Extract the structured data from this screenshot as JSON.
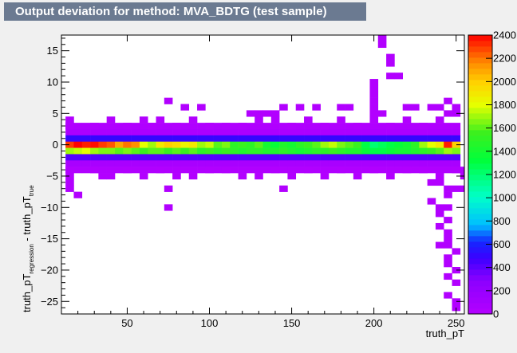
{
  "title": "Output deviation for method: MVA_BDTG (test sample)",
  "chart_data": {
    "type": "heatmap",
    "title": "Output deviation for method: MVA_BDTG (test sample)",
    "xlabel": "truth_pT",
    "ylabel_main": "truth_pT",
    "ylabel_sub1": "regression",
    "ylabel_mid": " - truth_pT",
    "ylabel_sub2": "true",
    "xlim": [
      10,
      255
    ],
    "ylim": [
      -27,
      17.5
    ],
    "x_ticks": [
      50,
      100,
      150,
      200,
      250
    ],
    "y_ticks": [
      -25,
      -20,
      -15,
      -10,
      -5,
      0,
      5,
      10,
      15
    ],
    "z_range": [
      0,
      2400
    ],
    "z_ticks": [
      0,
      200,
      400,
      600,
      800,
      1000,
      1200,
      1400,
      1600,
      1800,
      2000,
      2200,
      2400
    ],
    "bin_width_x": 5,
    "bin_width_y": 1,
    "sparse_cells": [
      [
        205,
        17
      ],
      [
        205,
        16
      ],
      [
        210,
        14
      ],
      [
        210,
        13
      ],
      [
        210,
        11
      ],
      [
        215,
        11
      ],
      [
        200,
        10
      ],
      [
        200,
        9
      ],
      [
        200,
        8
      ],
      [
        200,
        7
      ],
      [
        200,
        6
      ],
      [
        75,
        7
      ],
      [
        85,
        6
      ],
      [
        95,
        6
      ],
      [
        125,
        5
      ],
      [
        130,
        5
      ],
      [
        135,
        5
      ],
      [
        140,
        5
      ],
      [
        145,
        6
      ],
      [
        155,
        6
      ],
      [
        165,
        6
      ],
      [
        180,
        6
      ],
      [
        185,
        6
      ],
      [
        200,
        5
      ],
      [
        205,
        5
      ],
      [
        220,
        6
      ],
      [
        225,
        6
      ],
      [
        235,
        6
      ],
      [
        240,
        6
      ],
      [
        245,
        7
      ],
      [
        250,
        6
      ],
      [
        250,
        5
      ],
      [
        245,
        5
      ],
      [
        15,
        4
      ],
      [
        15,
        3
      ],
      [
        30,
        3
      ],
      [
        40,
        4
      ],
      [
        50,
        3
      ],
      [
        60,
        4
      ],
      [
        65,
        3
      ],
      [
        70,
        4
      ],
      [
        80,
        3
      ],
      [
        90,
        4
      ],
      [
        100,
        3
      ],
      [
        110,
        3
      ],
      [
        120,
        3
      ],
      [
        130,
        4
      ],
      [
        140,
        4
      ],
      [
        150,
        3
      ],
      [
        160,
        4
      ],
      [
        170,
        3
      ],
      [
        180,
        4
      ],
      [
        190,
        3
      ],
      [
        200,
        4
      ],
      [
        210,
        3
      ],
      [
        220,
        4
      ],
      [
        230,
        3
      ],
      [
        240,
        4
      ],
      [
        15,
        -4
      ],
      [
        15,
        -5
      ],
      [
        30,
        -4
      ],
      [
        40,
        -5
      ],
      [
        50,
        -4
      ],
      [
        60,
        -5
      ],
      [
        70,
        -4
      ],
      [
        80,
        -5
      ],
      [
        90,
        -5
      ],
      [
        100,
        -4
      ],
      [
        110,
        -4
      ],
      [
        120,
        -5
      ],
      [
        130,
        -5
      ],
      [
        140,
        -4
      ],
      [
        150,
        -5
      ],
      [
        160,
        -4
      ],
      [
        170,
        -5
      ],
      [
        180,
        -4
      ],
      [
        190,
        -5
      ],
      [
        200,
        -4
      ],
      [
        210,
        -5
      ],
      [
        220,
        -4
      ],
      [
        230,
        -4
      ],
      [
        240,
        -5
      ],
      [
        250,
        -4
      ],
      [
        255,
        -5
      ],
      [
        255,
        -4
      ],
      [
        255,
        -7
      ],
      [
        15,
        -6
      ],
      [
        15,
        -7
      ],
      [
        20,
        -8
      ],
      [
        35,
        -5
      ],
      [
        75,
        -7
      ],
      [
        145,
        -7
      ],
      [
        75,
        -10
      ],
      [
        235,
        -6
      ],
      [
        240,
        -6
      ],
      [
        245,
        -7
      ],
      [
        250,
        -7
      ],
      [
        245,
        -8
      ],
      [
        235,
        -9
      ],
      [
        240,
        -10
      ],
      [
        245,
        -10
      ],
      [
        240,
        -11
      ],
      [
        245,
        -12
      ],
      [
        240,
        -13
      ],
      [
        245,
        -14
      ],
      [
        245,
        -15
      ],
      [
        240,
        -16
      ],
      [
        245,
        -16
      ],
      [
        250,
        -17
      ],
      [
        245,
        -18
      ],
      [
        245,
        -19
      ],
      [
        250,
        -20
      ],
      [
        245,
        -21
      ],
      [
        250,
        -22
      ],
      [
        245,
        -24
      ],
      [
        250,
        -25
      ],
      [
        250,
        -26
      ]
    ],
    "band_peak": {
      "x_centers": [
        15,
        20,
        25,
        30,
        35,
        40,
        45,
        50,
        55,
        60,
        65,
        70,
        75,
        80,
        85,
        90,
        95,
        100,
        105,
        110,
        115,
        120,
        125,
        130,
        135,
        140,
        145,
        150,
        155,
        160,
        165,
        170,
        175,
        180,
        185,
        190,
        195,
        200,
        205,
        210,
        215,
        220,
        225,
        230,
        235,
        240,
        245,
        250
      ],
      "zero_row": [
        2300,
        2400,
        2350,
        2380,
        2300,
        2250,
        2100,
        2200,
        2150,
        1800,
        1700,
        1900,
        2000,
        1950,
        1850,
        1900,
        1700,
        1750,
        1600,
        1650,
        1500,
        1550,
        1500,
        1600,
        1400,
        1350,
        1450,
        1400,
        1500,
        1550,
        1600,
        1700,
        1750,
        1650,
        1600,
        1550,
        1300,
        1200,
        1250,
        1300,
        1350,
        1400,
        1500,
        1700,
        1800,
        1900,
        2350,
        2000
      ],
      "minus1_row": [
        1700,
        1750,
        1800,
        1700,
        1650,
        1650,
        1600,
        1650,
        1600,
        1550,
        1600,
        1600,
        1550,
        1600,
        1550,
        1600,
        1500,
        1550,
        1500,
        1550,
        1500,
        1450,
        1500,
        1500,
        1450,
        1450,
        1500,
        1450,
        1400,
        1450,
        1500,
        1500,
        1550,
        1500,
        1450,
        1450,
        1350,
        1300,
        1300,
        1350,
        1400,
        1400,
        1450,
        1500,
        1550,
        1600,
        1700,
        1650
      ]
    }
  }
}
